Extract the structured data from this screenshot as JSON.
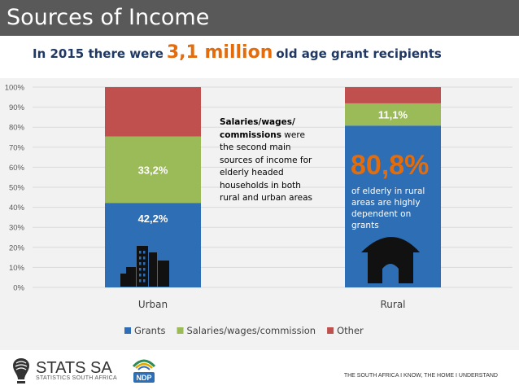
{
  "header": {
    "title": "Sources of Income",
    "headline_pre": "In 2015 there were",
    "headline_value": "3,1 million",
    "headline_post": "old age grant recipients"
  },
  "annotations": {
    "middle_bold": "Salaries/wages/ commissions",
    "middle_rest": " were the second main sources of income for elderly headed households in both rural and urban areas",
    "rural_pct": "80,8%",
    "rural_text": "of elderly in rural areas are highly dependent on grants"
  },
  "chart_data": {
    "type": "bar",
    "stacked": true,
    "categories": [
      "Urban",
      "Rural"
    ],
    "series": [
      {
        "name": "Grants",
        "color": "#2e6eb5",
        "values": [
          42.2,
          80.8
        ],
        "labels": [
          "42,2%",
          ""
        ]
      },
      {
        "name": "Salaries/wages/commission",
        "color": "#9bbb59",
        "values": [
          33.2,
          11.1
        ],
        "labels": [
          "33,2%",
          "11,1%"
        ]
      },
      {
        "name": "Other",
        "color": "#c0504d",
        "values": [
          24.6,
          8.1
        ],
        "labels": [
          "",
          ""
        ]
      }
    ],
    "ylim": [
      0,
      100
    ],
    "yticks": [
      "0%",
      "10%",
      "20%",
      "30%",
      "40%",
      "50%",
      "60%",
      "70%",
      "80%",
      "90%",
      "100%"
    ],
    "grid": true,
    "legend": "bottom",
    "icons": [
      "buildings-icon",
      "hut-icon"
    ]
  },
  "footer": {
    "logo_name": "STATS SA",
    "logo_sub": "STATISTICS SOUTH AFRICA",
    "tagline": "THE SOUTH AFRICA I KNOW, THE HOME I UNDERSTAND"
  }
}
